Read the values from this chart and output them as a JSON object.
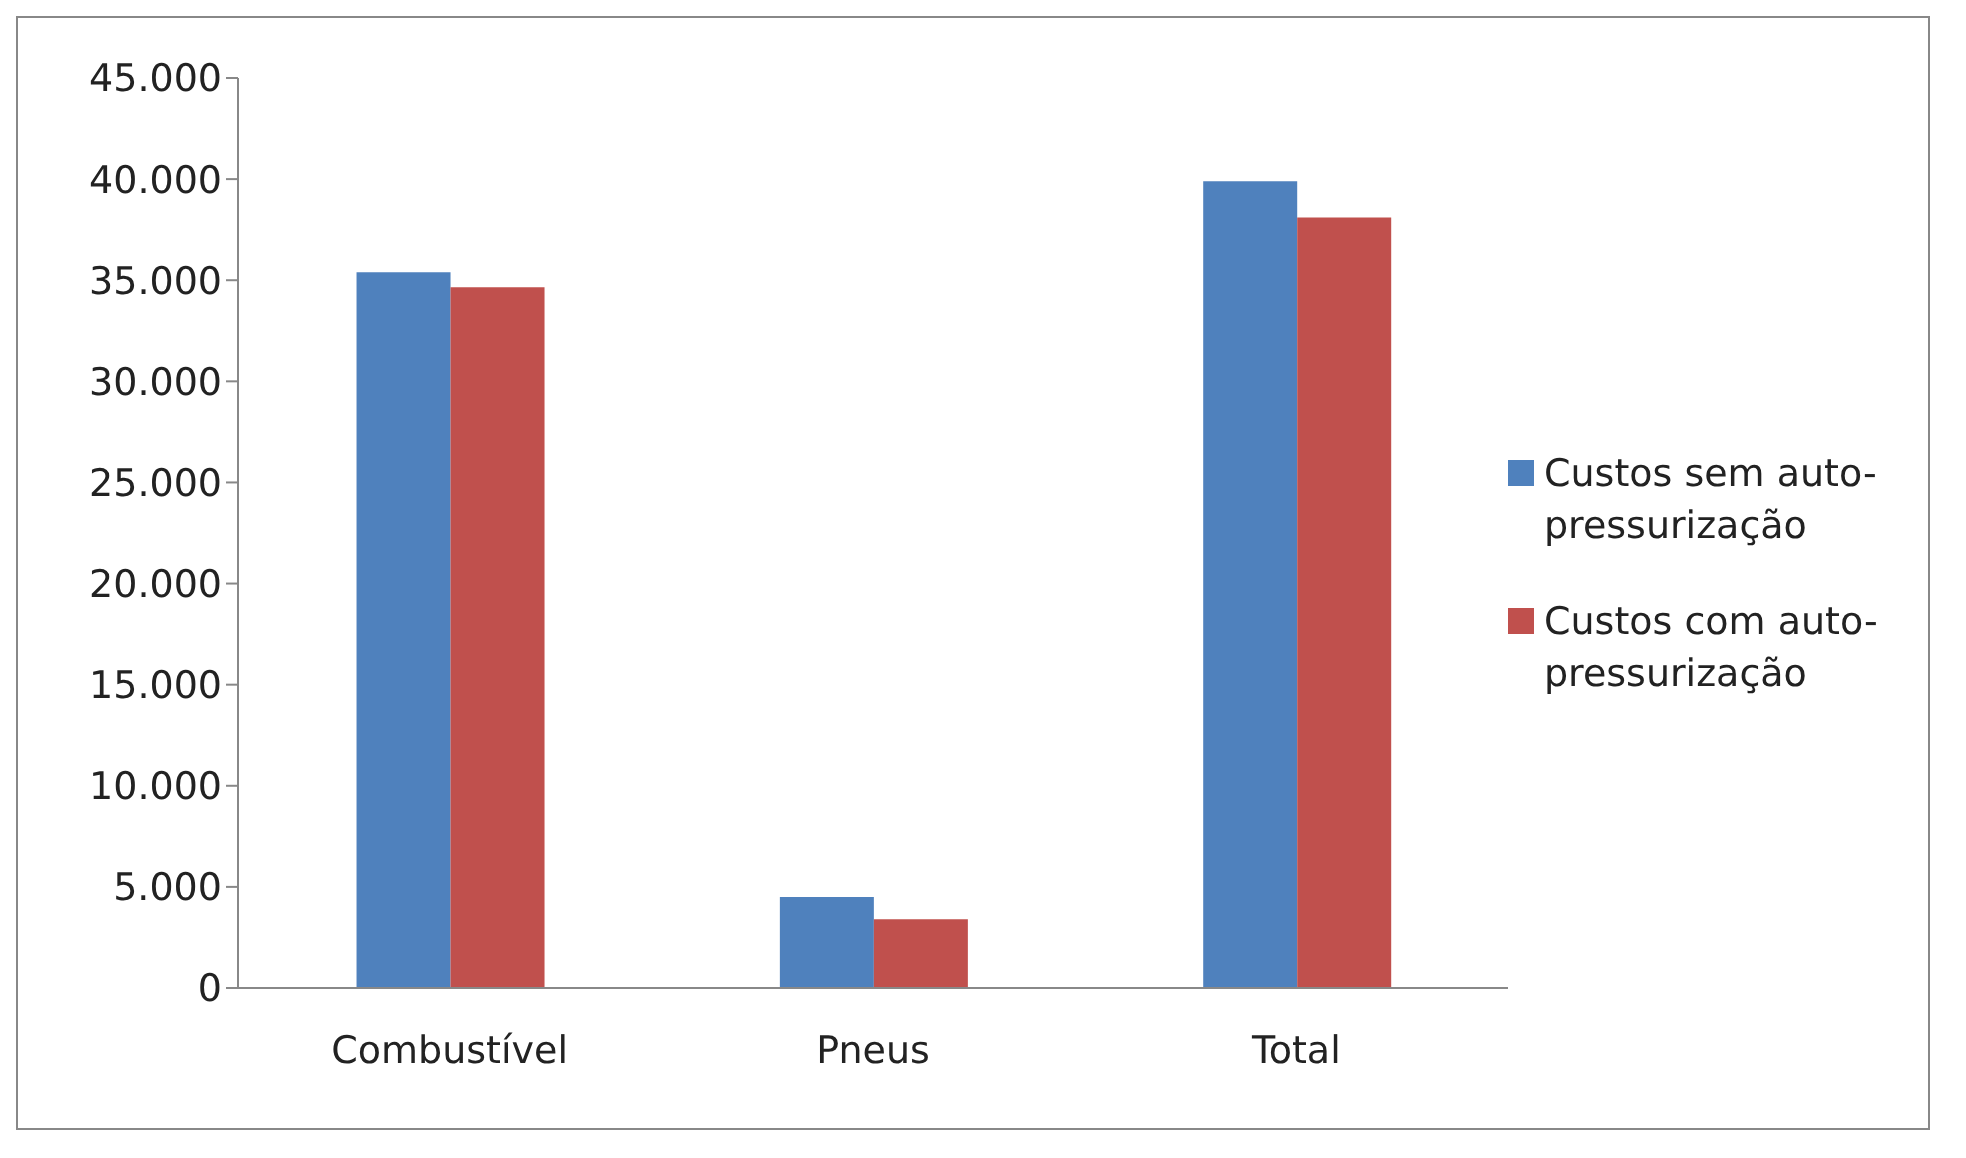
{
  "chart_data": {
    "type": "bar",
    "categories": [
      "Combustível",
      "Pneus",
      "Total"
    ],
    "series": [
      {
        "name": "Custos sem auto-pressurização",
        "color": "#4f81bd",
        "values": [
          35400,
          4500,
          39900
        ]
      },
      {
        "name": "Custos com auto-pressurização",
        "color": "#c0504d",
        "values": [
          34650,
          3400,
          38100
        ]
      }
    ],
    "ylim": [
      0,
      45000
    ],
    "yticks": [
      {
        "value": 0,
        "label": "0"
      },
      {
        "value": 5000,
        "label": "5.000"
      },
      {
        "value": 10000,
        "label": "10.000"
      },
      {
        "value": 15000,
        "label": "15.000"
      },
      {
        "value": 20000,
        "label": "20.000"
      },
      {
        "value": 25000,
        "label": "25.000"
      },
      {
        "value": 30000,
        "label": "30.000"
      },
      {
        "value": 35000,
        "label": "35.000"
      },
      {
        "value": 40000,
        "label": "40.000"
      },
      {
        "value": 45000,
        "label": "45.000"
      }
    ],
    "grid": false,
    "legend": "right"
  }
}
